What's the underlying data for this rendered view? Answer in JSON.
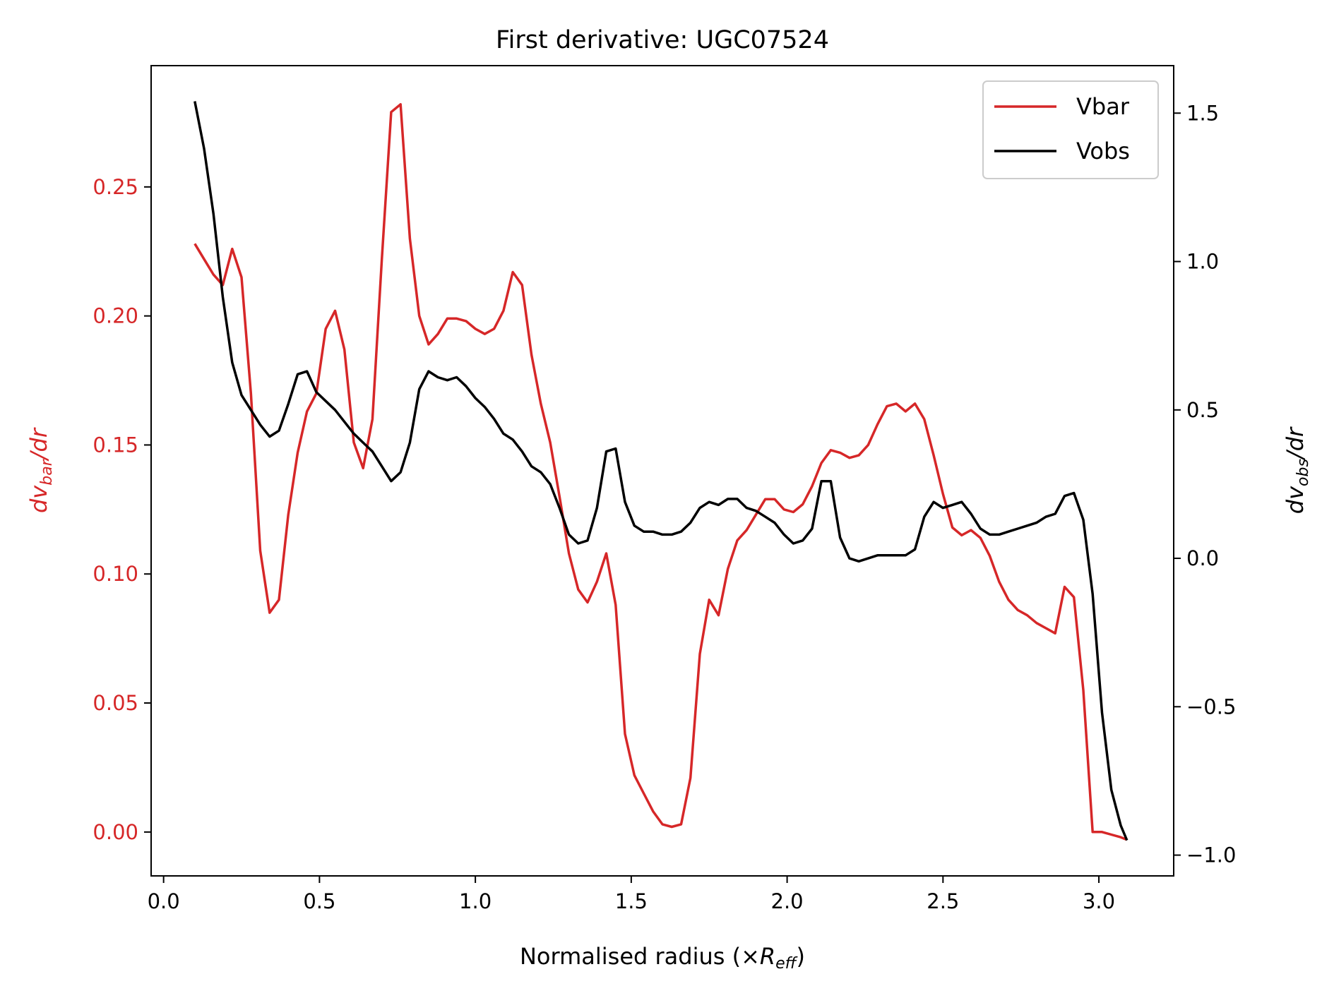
{
  "chart_data": {
    "type": "line",
    "title": "First derivative: UGC07524",
    "xlabel": {
      "main": "Normalised radius (×",
      "italic": "R",
      "sub": "eff",
      "close": ")"
    },
    "ylabel_left": {
      "d": "dv",
      "sub": "bar",
      "rest": "/dr"
    },
    "ylabel_right": {
      "d": "dv",
      "sub": "obs",
      "rest": "/dr"
    },
    "xlim": [
      -0.04,
      3.24
    ],
    "ylim_left": [
      -0.017,
      0.297
    ],
    "ylim_right": [
      -1.07,
      1.66
    ],
    "x_ticks": [
      0.0,
      0.5,
      1.0,
      1.5,
      2.0,
      2.5,
      3.0
    ],
    "x_tick_labels": [
      "0.0",
      "0.5",
      "1.0",
      "1.5",
      "2.0",
      "2.5",
      "3.0"
    ],
    "y_left_ticks": [
      0.0,
      0.05,
      0.1,
      0.15,
      0.2,
      0.25
    ],
    "y_left_tick_labels": [
      "0.00",
      "0.05",
      "0.10",
      "0.15",
      "0.20",
      "0.25"
    ],
    "y_right_ticks": [
      -1.0,
      -0.5,
      0.0,
      0.5,
      1.0,
      1.5
    ],
    "y_right_tick_labels": [
      "−1.0",
      "−0.5",
      "0.0",
      "0.5",
      "1.0",
      "1.5"
    ],
    "grid": false,
    "legend": {
      "placement": "top-right",
      "entries": [
        "Vbar",
        "Vobs"
      ]
    },
    "colors": {
      "vbar": "#d62728",
      "vobs": "#000000",
      "left_axis": "#d62728",
      "right_axis": "#000000"
    },
    "series": [
      {
        "name": "Vbar",
        "axis": "left",
        "color": "#d62728",
        "x": [
          0.1,
          0.13,
          0.16,
          0.19,
          0.22,
          0.25,
          0.28,
          0.31,
          0.34,
          0.37,
          0.4,
          0.43,
          0.46,
          0.49,
          0.52,
          0.55,
          0.58,
          0.61,
          0.64,
          0.67,
          0.7,
          0.73,
          0.76,
          0.79,
          0.82,
          0.85,
          0.88,
          0.91,
          0.94,
          0.97,
          1.0,
          1.03,
          1.06,
          1.09,
          1.12,
          1.15,
          1.18,
          1.21,
          1.24,
          1.27,
          1.3,
          1.33,
          1.36,
          1.39,
          1.42,
          1.45,
          1.48,
          1.51,
          1.54,
          1.57,
          1.6,
          1.63,
          1.66,
          1.69,
          1.72,
          1.75,
          1.78,
          1.81,
          1.84,
          1.87,
          1.9,
          1.93,
          1.96,
          1.99,
          2.02,
          2.05,
          2.08,
          2.11,
          2.14,
          2.17,
          2.2,
          2.23,
          2.26,
          2.29,
          2.32,
          2.35,
          2.38,
          2.41,
          2.44,
          2.47,
          2.5,
          2.53,
          2.56,
          2.59,
          2.62,
          2.65,
          2.68,
          2.71,
          2.74,
          2.77,
          2.8,
          2.83,
          2.86,
          2.89,
          2.92,
          2.95,
          2.98,
          3.01,
          3.04,
          3.07,
          3.09
        ],
        "y": [
          0.228,
          0.222,
          0.216,
          0.212,
          0.226,
          0.215,
          0.17,
          0.109,
          0.085,
          0.09,
          0.123,
          0.147,
          0.163,
          0.17,
          0.195,
          0.202,
          0.187,
          0.151,
          0.141,
          0.16,
          0.222,
          0.279,
          0.282,
          0.23,
          0.2,
          0.189,
          0.193,
          0.199,
          0.199,
          0.198,
          0.195,
          0.193,
          0.195,
          0.202,
          0.217,
          0.212,
          0.185,
          0.166,
          0.151,
          0.13,
          0.108,
          0.094,
          0.089,
          0.097,
          0.108,
          0.088,
          0.038,
          0.022,
          0.015,
          0.008,
          0.003,
          0.002,
          0.003,
          0.021,
          0.069,
          0.09,
          0.084,
          0.102,
          0.113,
          0.117,
          0.123,
          0.129,
          0.129,
          0.125,
          0.124,
          0.127,
          0.134,
          0.143,
          0.148,
          0.147,
          0.145,
          0.146,
          0.15,
          0.158,
          0.165,
          0.166,
          0.163,
          0.166,
          0.16,
          0.146,
          0.131,
          0.118,
          0.115,
          0.117,
          0.114,
          0.107,
          0.097,
          0.09,
          0.086,
          0.084,
          0.081,
          0.079,
          0.077,
          0.095,
          0.091,
          0.055,
          0.0,
          0.0,
          -0.001,
          -0.002,
          -0.003
        ]
      },
      {
        "name": "Vobs",
        "axis": "right",
        "color": "#000000",
        "x": [
          0.1,
          0.13,
          0.16,
          0.19,
          0.22,
          0.25,
          0.28,
          0.31,
          0.34,
          0.37,
          0.4,
          0.43,
          0.46,
          0.49,
          0.52,
          0.55,
          0.58,
          0.61,
          0.64,
          0.67,
          0.7,
          0.73,
          0.76,
          0.79,
          0.82,
          0.85,
          0.88,
          0.91,
          0.94,
          0.97,
          1.0,
          1.03,
          1.06,
          1.09,
          1.12,
          1.15,
          1.18,
          1.21,
          1.24,
          1.27,
          1.3,
          1.33,
          1.36,
          1.39,
          1.42,
          1.45,
          1.48,
          1.51,
          1.54,
          1.57,
          1.6,
          1.63,
          1.66,
          1.69,
          1.72,
          1.75,
          1.78,
          1.81,
          1.84,
          1.87,
          1.9,
          1.93,
          1.96,
          1.99,
          2.02,
          2.05,
          2.08,
          2.11,
          2.14,
          2.17,
          2.2,
          2.23,
          2.26,
          2.29,
          2.32,
          2.35,
          2.38,
          2.41,
          2.44,
          2.47,
          2.5,
          2.53,
          2.56,
          2.59,
          2.62,
          2.65,
          2.68,
          2.71,
          2.74,
          2.77,
          2.8,
          2.83,
          2.86,
          2.89,
          2.92,
          2.95,
          2.98,
          3.01,
          3.04,
          3.07,
          3.09
        ],
        "y": [
          1.54,
          1.38,
          1.16,
          0.88,
          0.66,
          0.55,
          0.5,
          0.45,
          0.41,
          0.43,
          0.52,
          0.62,
          0.63,
          0.56,
          0.53,
          0.5,
          0.46,
          0.42,
          0.39,
          0.36,
          0.31,
          0.26,
          0.29,
          0.39,
          0.57,
          0.63,
          0.61,
          0.6,
          0.61,
          0.58,
          0.54,
          0.51,
          0.47,
          0.42,
          0.4,
          0.36,
          0.31,
          0.29,
          0.25,
          0.17,
          0.08,
          0.05,
          0.06,
          0.17,
          0.36,
          0.37,
          0.19,
          0.11,
          0.09,
          0.09,
          0.08,
          0.08,
          0.09,
          0.12,
          0.17,
          0.19,
          0.18,
          0.2,
          0.2,
          0.17,
          0.16,
          0.14,
          0.12,
          0.08,
          0.05,
          0.06,
          0.1,
          0.26,
          0.26,
          0.07,
          0.0,
          -0.01,
          0.0,
          0.01,
          0.01,
          0.01,
          0.01,
          0.03,
          0.14,
          0.19,
          0.17,
          0.18,
          0.19,
          0.15,
          0.1,
          0.08,
          0.08,
          0.09,
          0.1,
          0.11,
          0.12,
          0.14,
          0.15,
          0.21,
          0.22,
          0.13,
          -0.12,
          -0.52,
          -0.78,
          -0.9,
          -0.95
        ]
      }
    ]
  }
}
